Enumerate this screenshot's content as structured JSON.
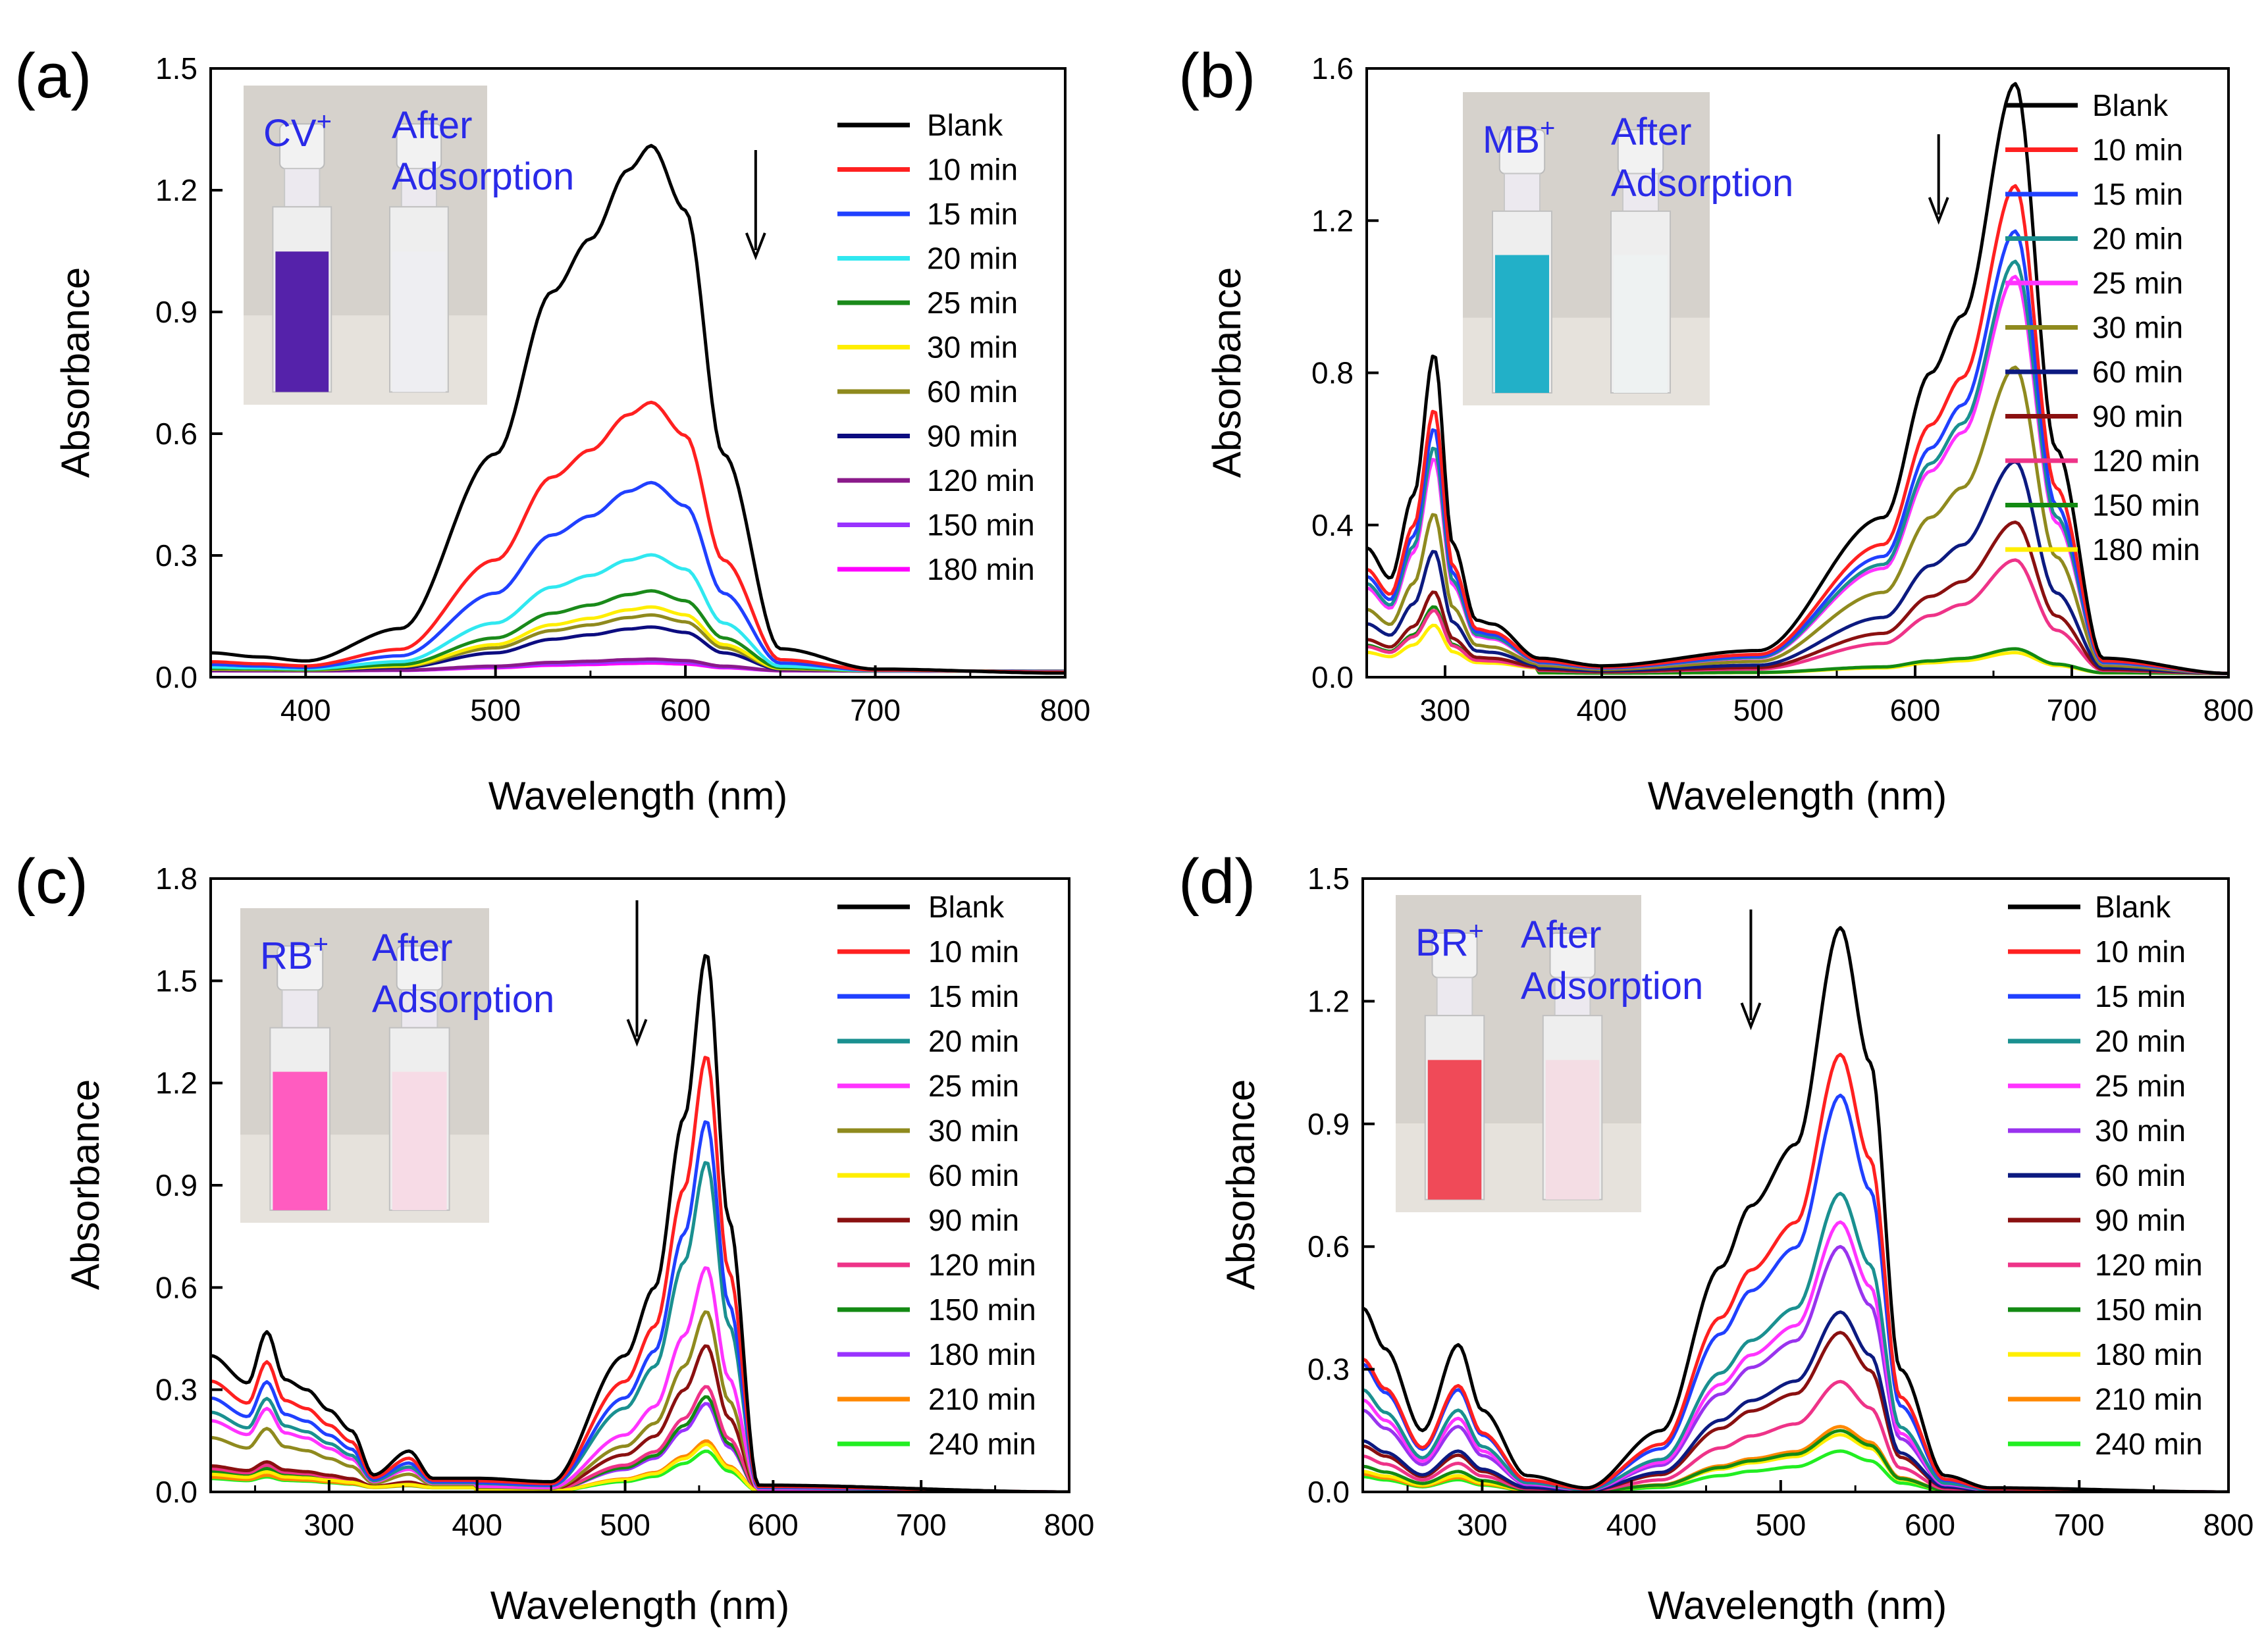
{
  "chart_data": [
    {
      "id": "a",
      "type": "line",
      "panel_label": "(a)",
      "xlabel": "Wavelength (nm)",
      "ylabel": "Absorbance",
      "xlim": [
        350,
        800
      ],
      "ylim": [
        0,
        1.5
      ],
      "xticks": [
        400,
        500,
        600,
        700,
        800
      ],
      "yticks": [
        0.0,
        0.3,
        0.6,
        0.9,
        1.2,
        1.5
      ],
      "ytick_labels": [
        "0.0",
        "0.3",
        "0.6",
        "0.9",
        "1.2",
        "1.5"
      ],
      "inset": {
        "dye": "CV",
        "superscript": "+",
        "after": "After",
        "adsorption": "Adsorption",
        "dye_color": "#5522aa",
        "after_color": "#eeeef2"
      },
      "arrow_x": 637,
      "series": [
        {
          "name": "Blank",
          "color": "#000000",
          "peak": 1.31,
          "x": [
            350,
            375,
            400,
            450,
            500,
            530,
            550,
            570,
            582,
            600,
            620,
            650,
            700,
            800
          ],
          "values": [
            0.06,
            0.05,
            0.04,
            0.12,
            0.55,
            0.95,
            1.08,
            1.25,
            1.31,
            1.15,
            0.55,
            0.07,
            0.02,
            0.01
          ]
        },
        {
          "name": "10 min",
          "color": "#ff2020",
          "peak": 0.67
        },
        {
          "name": "15 min",
          "color": "#2040ff",
          "peak": 0.47
        },
        {
          "name": "20 min",
          "color": "#30e8f0",
          "peak": 0.29
        },
        {
          "name": "25 min",
          "color": "#1a8a1a",
          "peak": 0.2
        },
        {
          "name": "30 min",
          "color": "#ffee00",
          "peak": 0.16
        },
        {
          "name": "60 min",
          "color": "#8f8a1e",
          "peak": 0.14
        },
        {
          "name": "90 min",
          "color": "#0c0c80",
          "peak": 0.11
        },
        {
          "name": "120 min",
          "color": "#8a1a8a",
          "peak": 0.03
        },
        {
          "name": "150 min",
          "color": "#9933ff",
          "peak": 0.025
        },
        {
          "name": "180 min",
          "color": "#ff00ff",
          "peak": 0.02
        }
      ]
    },
    {
      "id": "b",
      "type": "line",
      "panel_label": "(b)",
      "xlabel": "Wavelength (nm)",
      "ylabel": "Absorbance",
      "xlim": [
        250,
        800
      ],
      "ylim": [
        0,
        1.6
      ],
      "xticks": [
        300,
        400,
        500,
        600,
        700,
        800
      ],
      "yticks": [
        0.0,
        0.4,
        0.8,
        1.2,
        1.6
      ],
      "ytick_labels": [
        "0.0",
        "0.4",
        "0.8",
        "1.2",
        "1.6"
      ],
      "inset": {
        "dye": "MB",
        "superscript": "+",
        "after": "After",
        "adsorption": "Adsorption",
        "dye_color": "#22b0c8",
        "after_color": "#eef2f2"
      },
      "arrow_x": 615,
      "series": [
        {
          "name": "Blank",
          "color": "#000000",
          "peak": 1.56,
          "uv_peak": 0.85,
          "x": [
            250,
            265,
            280,
            293,
            305,
            320,
            330,
            360,
            400,
            500,
            580,
            610,
            630,
            664,
            690,
            720,
            800
          ],
          "values": [
            0.34,
            0.26,
            0.48,
            0.85,
            0.35,
            0.15,
            0.14,
            0.05,
            0.03,
            0.07,
            0.42,
            0.8,
            0.95,
            1.56,
            0.6,
            0.05,
            0.01
          ]
        },
        {
          "name": "10 min",
          "color": "#ff2020",
          "peak": 1.29,
          "uv_peak": 0.7
        },
        {
          "name": "15 min",
          "color": "#2040ff",
          "peak": 1.17,
          "uv_peak": 0.65
        },
        {
          "name": "20 min",
          "color": "#1a9090",
          "peak": 1.09,
          "uv_peak": 0.6
        },
        {
          "name": "25 min",
          "color": "#ff33ff",
          "peak": 1.05,
          "uv_peak": 0.57
        },
        {
          "name": "30 min",
          "color": "#8f8a1e",
          "peak": 0.81,
          "uv_peak": 0.42
        },
        {
          "name": "60 min",
          "color": "#0c1a80",
          "peak": 0.56,
          "uv_peak": 0.32
        },
        {
          "name": "90 min",
          "color": "#8a1010",
          "peak": 0.4,
          "uv_peak": 0.21
        },
        {
          "name": "120 min",
          "color": "#ee3388",
          "peak": 0.3,
          "uv_peak": 0.16
        },
        {
          "name": "150 min",
          "color": "#138a13",
          "peak": 0.065,
          "uv_peak": 0.17
        },
        {
          "name": "180 min",
          "color": "#ffee00",
          "peak": 0.055,
          "uv_peak": 0.12
        }
      ]
    },
    {
      "id": "c",
      "type": "line",
      "panel_label": "(c)",
      "xlabel": "Wavelength (nm)",
      "ylabel": "Absorbance",
      "xlim": [
        220,
        800
      ],
      "ylim": [
        0,
        1.8
      ],
      "xticks": [
        300,
        400,
        500,
        600,
        700,
        800
      ],
      "yticks": [
        0.0,
        0.3,
        0.6,
        0.9,
        1.2,
        1.5,
        1.8
      ],
      "ytick_labels": [
        "0.0",
        "0.3",
        "0.6",
        "0.9",
        "1.2",
        "1.5",
        "1.8"
      ],
      "inset": {
        "dye": "RB",
        "superscript": "+",
        "after": "After",
        "adsorption": "Adsorption",
        "dye_color": "#ff5cc0",
        "after_color": "#f7dbe6"
      },
      "arrow_x": 508,
      "series": [
        {
          "name": "Blank",
          "color": "#000000",
          "peak": 1.58,
          "uv_peak": 0.47,
          "x": [
            220,
            245,
            258,
            270,
            285,
            300,
            315,
            330,
            354,
            370,
            400,
            450,
            500,
            520,
            540,
            555,
            570,
            590,
            800
          ],
          "values": [
            0.4,
            0.32,
            0.47,
            0.33,
            0.3,
            0.24,
            0.18,
            0.05,
            0.12,
            0.04,
            0.04,
            0.03,
            0.4,
            0.6,
            1.1,
            1.58,
            0.8,
            0.02,
            0.0
          ]
        },
        {
          "name": "10 min",
          "color": "#ff2020",
          "peak": 1.28,
          "uv_peak": 0.38
        },
        {
          "name": "15 min",
          "color": "#2040ff",
          "peak": 1.09,
          "uv_peak": 0.32
        },
        {
          "name": "20 min",
          "color": "#1a9090",
          "peak": 0.97,
          "uv_peak": 0.27
        },
        {
          "name": "25 min",
          "color": "#ff33ff",
          "peak": 0.66,
          "uv_peak": 0.24
        },
        {
          "name": "30 min",
          "color": "#8f8a1e",
          "peak": 0.53,
          "uv_peak": 0.18
        },
        {
          "name": "60 min",
          "color": "#ffee00",
          "peak": 0.14,
          "uv_peak": 0.05
        },
        {
          "name": "90 min",
          "color": "#8a1010",
          "peak": 0.43,
          "uv_peak": 0.08
        },
        {
          "name": "120 min",
          "color": "#ee3388",
          "peak": 0.31,
          "uv_peak": 0.07
        },
        {
          "name": "150 min",
          "color": "#138a13",
          "peak": 0.28,
          "uv_peak": 0.06
        },
        {
          "name": "180 min",
          "color": "#9933ff",
          "peak": 0.26,
          "uv_peak": 0.06
        },
        {
          "name": "210 min",
          "color": "#ff8800",
          "peak": 0.15,
          "uv_peak": 0.04
        },
        {
          "name": "240 min",
          "color": "#22ee22",
          "peak": 0.12,
          "uv_peak": 0.035
        }
      ]
    },
    {
      "id": "d",
      "type": "line",
      "panel_label": "(d)",
      "xlabel": "Wavelength (nm)",
      "ylabel": "Absorbance",
      "xlim": [
        220,
        800
      ],
      "ylim": [
        0,
        1.5
      ],
      "xticks": [
        300,
        400,
        500,
        600,
        700,
        800
      ],
      "yticks": [
        0.0,
        0.3,
        0.6,
        0.9,
        1.2,
        1.5
      ],
      "ytick_labels": [
        "0.0",
        "0.3",
        "0.6",
        "0.9",
        "1.2",
        "1.5"
      ],
      "inset": {
        "dye": "BR",
        "superscript": "+",
        "after": "After",
        "adsorption": "Adsorption",
        "dye_color": "#f04a58",
        "after_color": "#f4dde4"
      },
      "arrow_x": 480,
      "series": [
        {
          "name": "Blank",
          "color": "#000000",
          "peak": 1.38,
          "uv_peak": 0.36,
          "x": [
            220,
            235,
            260,
            284,
            300,
            330,
            370,
            420,
            460,
            480,
            510,
            540,
            560,
            580,
            610,
            640,
            800
          ],
          "values": [
            0.45,
            0.35,
            0.15,
            0.36,
            0.2,
            0.04,
            0.01,
            0.15,
            0.55,
            0.7,
            0.85,
            1.38,
            1.05,
            0.3,
            0.04,
            0.01,
            0.0
          ]
        },
        {
          "name": "10 min",
          "color": "#ff2020",
          "peak": 1.07,
          "uv_peak": 0.26
        },
        {
          "name": "15 min",
          "color": "#2040ff",
          "peak": 0.97,
          "uv_peak": 0.25
        },
        {
          "name": "20 min",
          "color": "#1a9090",
          "peak": 0.73,
          "uv_peak": 0.2
        },
        {
          "name": "25 min",
          "color": "#ff33ff",
          "peak": 0.66,
          "uv_peak": 0.18
        },
        {
          "name": "30 min",
          "color": "#9933ee",
          "peak": 0.6,
          "uv_peak": 0.16
        },
        {
          "name": "60 min",
          "color": "#0c1a80",
          "peak": 0.44,
          "uv_peak": 0.1
        },
        {
          "name": "90 min",
          "color": "#8a1010",
          "peak": 0.39,
          "uv_peak": 0.09
        },
        {
          "name": "120 min",
          "color": "#ee3388",
          "peak": 0.27,
          "uv_peak": 0.07
        },
        {
          "name": "150 min",
          "color": "#138a13",
          "peak": 0.15,
          "uv_peak": 0.05
        },
        {
          "name": "180 min",
          "color": "#ffee00",
          "peak": 0.14,
          "uv_peak": 0.04
        },
        {
          "name": "210 min",
          "color": "#ff8800",
          "peak": 0.16,
          "uv_peak": 0.035
        },
        {
          "name": "240 min",
          "color": "#22ee22",
          "peak": 0.1,
          "uv_peak": 0.03
        }
      ]
    }
  ]
}
